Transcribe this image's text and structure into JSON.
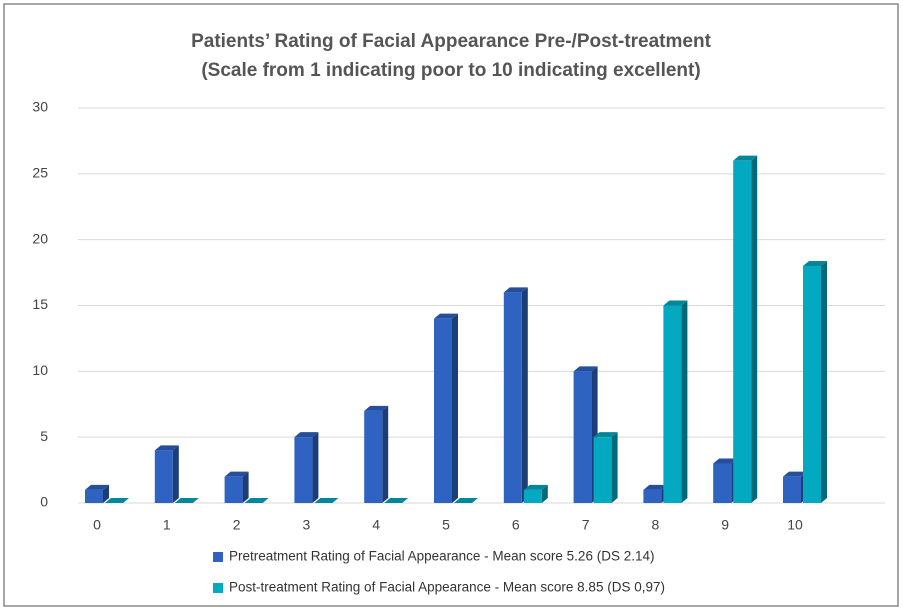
{
  "chart_data": {
    "type": "bar3d",
    "title": "Patients’ Rating of Facial Appearance Pre-/Post-treatment",
    "subtitle": "(Scale from 1 indicating poor to 10 indicating excellent)",
    "categories": [
      "0",
      "1",
      "2",
      "3",
      "4",
      "5",
      "6",
      "7",
      "8",
      "9",
      "10"
    ],
    "series": [
      {
        "name": "Pretreatment Rating of Facial Appearance - Mean score 5.26 (DS 2.14)",
        "color": "#2e63c2",
        "values": [
          1,
          4,
          2,
          5,
          7,
          14,
          16,
          10,
          1,
          3,
          2
        ]
      },
      {
        "name": "Post-treatment Rating of Facial Appearance - Mean score 8.85 (DS 0,97)",
        "color": "#02a9c1",
        "values": [
          0,
          0,
          0,
          0,
          0,
          0,
          1,
          5,
          15,
          26,
          18
        ]
      }
    ],
    "ylim": [
      0,
      30
    ],
    "yticks": [
      0,
      5,
      10,
      15,
      20,
      25,
      30
    ],
    "grid": true,
    "legend": "bottom"
  }
}
